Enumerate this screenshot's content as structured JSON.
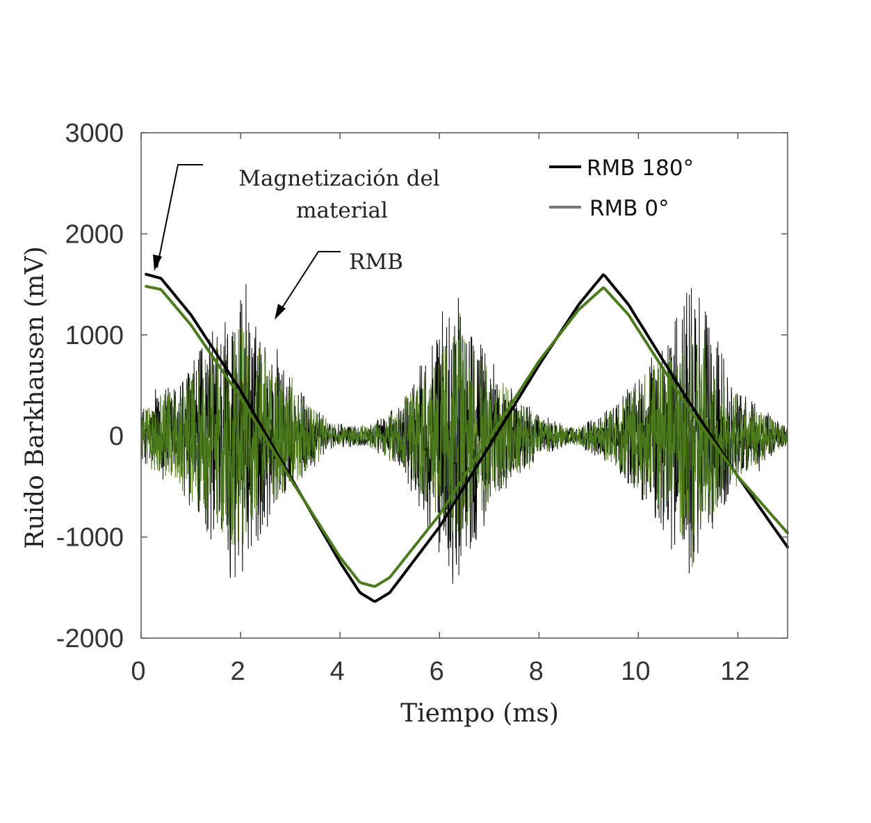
{
  "chart_data": {
    "type": "line",
    "title": "",
    "xlabel": "Tiempo (ms)",
    "ylabel": "Ruido Barkhausen (mV)",
    "xlim": [
      0,
      13
    ],
    "ylim": [
      -2000,
      3000
    ],
    "xticks": [
      0,
      2,
      4,
      6,
      8,
      10,
      12
    ],
    "yticks": [
      3000,
      2000,
      1000,
      0,
      -1000,
      -2000
    ],
    "grid": false,
    "legend_position": "top-right",
    "legend": [
      "RMB 180°",
      "RMB 0°"
    ],
    "annotations": [
      {
        "lines": [
          "Magnetización del",
          "material"
        ]
      },
      {
        "lines": [
          "RMB"
        ]
      }
    ],
    "series": [
      {
        "name": "RMB 180°",
        "color": "#000000",
        "magnetization_curve": {
          "x": [
            0.1,
            0.4,
            1.0,
            2.0,
            3.0,
            4.0,
            4.4,
            4.7,
            5.0,
            6.0,
            7.0,
            8.0,
            8.8,
            9.3,
            9.8,
            11.0,
            12.0,
            13.0
          ],
          "y": [
            1600,
            1560,
            1200,
            450,
            -400,
            -1250,
            -1550,
            -1640,
            -1550,
            -900,
            -100,
            700,
            1300,
            1600,
            1300,
            350,
            -400,
            -1100
          ]
        },
        "noise_envelope": {
          "x": [
            0,
            1.0,
            1.9,
            2.8,
            3.8,
            4.5,
            5.2,
            6.3,
            7.2,
            8.0,
            8.7,
            9.5,
            10.3,
            11.1,
            12.0,
            13.0
          ],
          "amplitude": [
            250,
            700,
            1500,
            700,
            130,
            100,
            300,
            1500,
            600,
            200,
            80,
            300,
            800,
            1550,
            450,
            80
          ]
        }
      },
      {
        "name": "RMB 0°",
        "color": "#4b7a1c",
        "magnetization_curve": {
          "x": [
            0.1,
            0.4,
            1.0,
            2.0,
            3.0,
            4.0,
            4.4,
            4.7,
            5.0,
            6.0,
            7.0,
            8.0,
            8.8,
            9.3,
            9.8,
            11.0,
            12.0,
            13.0
          ],
          "y": [
            1480,
            1450,
            1100,
            380,
            -420,
            -1200,
            -1450,
            -1490,
            -1400,
            -780,
            -20,
            740,
            1250,
            1470,
            1200,
            280,
            -400,
            -960
          ]
        },
        "noise_envelope": {
          "x": [
            0,
            1.0,
            1.9,
            2.8,
            3.8,
            4.5,
            5.2,
            6.3,
            7.2,
            8.0,
            8.7,
            9.5,
            10.3,
            11.1,
            12.0,
            13.0
          ],
          "amplitude": [
            250,
            650,
            1200,
            600,
            120,
            100,
            280,
            1100,
            550,
            180,
            80,
            280,
            700,
            1100,
            400,
            80
          ]
        }
      }
    ]
  },
  "colors": {
    "rmb_180": "#000000",
    "rmb_0_legend": "#777777",
    "rmb_0_plot": "#4b7a1c",
    "axis": "#555555"
  }
}
